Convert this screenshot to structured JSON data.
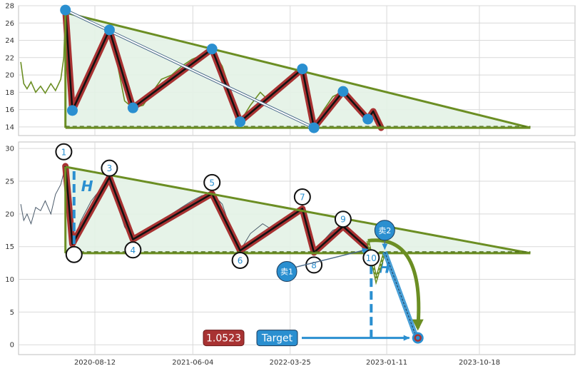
{
  "chart_data": [
    {
      "type": "line",
      "panel": "top",
      "ylim": [
        13,
        28
      ],
      "y_ticks": [
        14,
        16,
        18,
        20,
        22,
        24,
        26,
        28
      ],
      "grid": true,
      "colors": {
        "price": "#6b8e23",
        "zigzag": "#a83232",
        "pivot": "#2a8fd0",
        "triangle": "#6b8e23",
        "fill": "#e3f2e6"
      },
      "price": [
        [
          "2020-01-01",
          21.5
        ],
        [
          "2020-01-10",
          19.0
        ],
        [
          "2020-01-20",
          18.4
        ],
        [
          "2020-02-01",
          19.2
        ],
        [
          "2020-02-15",
          18.0
        ],
        [
          "2020-03-01",
          18.7
        ],
        [
          "2020-03-15",
          17.9
        ],
        [
          "2020-04-01",
          19.0
        ],
        [
          "2020-04-15",
          18.2
        ],
        [
          "2020-05-01",
          19.5
        ],
        [
          "2020-05-10",
          22.0
        ],
        [
          "2020-05-15",
          27.5
        ],
        [
          "2020-05-25",
          21.0
        ],
        [
          "2020-06-05",
          16.0
        ],
        [
          "2020-07-01",
          17.8
        ],
        [
          "2020-08-01",
          20.5
        ],
        [
          "2020-09-01",
          22.6
        ],
        [
          "2020-09-25",
          25.2
        ],
        [
          "2020-10-15",
          22.0
        ],
        [
          "2020-11-10",
          17.0
        ],
        [
          "2020-12-05",
          16.2
        ],
        [
          "2021-01-05",
          16.5
        ],
        [
          "2021-02-01",
          18.0
        ],
        [
          "2021-03-01",
          19.5
        ],
        [
          "2021-04-01",
          20.0
        ],
        [
          "2021-05-01",
          21.0
        ],
        [
          "2021-06-01",
          21.8
        ],
        [
          "2021-07-01",
          22.3
        ],
        [
          "2021-08-01",
          23.0
        ],
        [
          "2021-09-01",
          21.0
        ],
        [
          "2021-10-01",
          17.5
        ],
        [
          "2021-10-25",
          14.6
        ],
        [
          "2021-11-25",
          16.5
        ],
        [
          "2021-12-25",
          18.0
        ],
        [
          "2022-01-20",
          17.0
        ],
        [
          "2022-03-01",
          18.5
        ],
        [
          "2022-04-01",
          19.5
        ],
        [
          "2022-05-01",
          20.7
        ],
        [
          "2022-05-15",
          17.0
        ],
        [
          "2022-06-05",
          14.2
        ],
        [
          "2022-07-05",
          16.0
        ],
        [
          "2022-08-01",
          17.5
        ],
        [
          "2022-09-01",
          18.1
        ],
        [
          "2022-10-10",
          16.5
        ],
        [
          "2022-11-15",
          14.9
        ]
      ],
      "zigzag": [
        [
          "2020-05-15",
          27.5
        ],
        [
          "2020-06-05",
          15.9
        ],
        [
          "2020-09-25",
          25.2
        ],
        [
          "2020-12-05",
          16.2
        ],
        [
          "2021-08-01",
          23.0
        ],
        [
          "2021-10-25",
          14.6
        ],
        [
          "2022-05-01",
          20.7
        ],
        [
          "2022-06-05",
          13.9
        ],
        [
          "2022-09-01",
          18.1
        ],
        [
          "2022-11-15",
          14.9
        ],
        [
          "2022-12-01",
          15.8
        ],
        [
          "2022-12-25",
          13.9
        ]
      ],
      "pivots": [
        [
          "2020-05-15",
          27.5
        ],
        [
          "2020-06-05",
          15.9
        ],
        [
          "2020-09-25",
          25.2
        ],
        [
          "2020-12-05",
          16.2
        ],
        [
          "2021-08-01",
          23.0
        ],
        [
          "2021-10-25",
          14.6
        ],
        [
          "2022-05-01",
          20.7
        ],
        [
          "2022-06-05",
          13.9
        ],
        [
          "2022-09-01",
          18.1
        ],
        [
          "2022-11-15",
          14.9
        ]
      ],
      "triangle": {
        "apex_start": [
          "2020-05-15",
          27.2
        ],
        "apex_end": [
          "2024-03-20",
          13.9
        ],
        "base": 13.9
      },
      "diagonal_arrow": [
        [
          "2020-05-15",
          27.5
        ],
        [
          "2022-06-05",
          13.9
        ]
      ]
    },
    {
      "type": "line",
      "panel": "bottom",
      "ylim": [
        -1.5,
        31
      ],
      "y_ticks": [
        0,
        5,
        10,
        15,
        20,
        25,
        30
      ],
      "x_ticks": [
        "2020-08-12",
        "2021-06-04",
        "2022-03-25",
        "2023-01-11",
        "2023-10-18"
      ],
      "grid": true,
      "colors": {
        "price": "#4a5a6a",
        "zigzag": "#a83232",
        "triangle": "#6b8e23",
        "fill": "#e3f2e6",
        "dash": "#2a8fd0",
        "projection": "#6b8e23",
        "sell": "#2a8fd0",
        "badge": "#a83232"
      },
      "price": [
        [
          "2020-01-01",
          21.5
        ],
        [
          "2020-01-10",
          19.0
        ],
        [
          "2020-01-20",
          20.0
        ],
        [
          "2020-02-01",
          18.5
        ],
        [
          "2020-02-15",
          21.0
        ],
        [
          "2020-03-01",
          20.5
        ],
        [
          "2020-03-15",
          22.0
        ],
        [
          "2020-04-01",
          20.0
        ],
        [
          "2020-04-15",
          23.0
        ],
        [
          "2020-05-01",
          24.5
        ],
        [
          "2020-05-15",
          27.3
        ],
        [
          "2020-05-25",
          22.0
        ],
        [
          "2020-06-05",
          15.4
        ],
        [
          "2020-07-01",
          19.0
        ],
        [
          "2020-08-01",
          22.0
        ],
        [
          "2020-09-01",
          24.0
        ],
        [
          "2020-09-25",
          25.6
        ],
        [
          "2020-10-15",
          22.0
        ],
        [
          "2020-11-10",
          18.0
        ],
        [
          "2020-12-05",
          16.1
        ],
        [
          "2021-01-05",
          17.5
        ],
        [
          "2021-03-01",
          19.0
        ],
        [
          "2021-05-01",
          21.0
        ],
        [
          "2021-06-01",
          22.0
        ],
        [
          "2021-07-01",
          22.8
        ],
        [
          "2021-08-01",
          23.1
        ],
        [
          "2021-09-01",
          21.5
        ],
        [
          "2021-10-01",
          17.0
        ],
        [
          "2021-10-25",
          14.4
        ],
        [
          "2021-11-25",
          17.0
        ],
        [
          "2022-01-01",
          18.5
        ],
        [
          "2022-02-01",
          17.5
        ],
        [
          "2022-03-01",
          19.0
        ],
        [
          "2022-04-01",
          19.8
        ],
        [
          "2022-05-01",
          20.8
        ],
        [
          "2022-05-15",
          17.0
        ],
        [
          "2022-06-05",
          14.1
        ],
        [
          "2022-07-05",
          16.0
        ],
        [
          "2022-08-01",
          17.5
        ],
        [
          "2022-09-01",
          18.1
        ],
        [
          "2022-10-10",
          16.0
        ],
        [
          "2022-11-15",
          14.7
        ]
      ],
      "zigzag": [
        [
          "2020-05-15",
          27.3
        ],
        [
          "2020-06-05",
          15.4
        ],
        [
          "2020-09-25",
          25.6
        ],
        [
          "2020-12-05",
          16.1
        ],
        [
          "2021-08-01",
          23.1
        ],
        [
          "2021-10-25",
          14.4
        ],
        [
          "2022-05-01",
          20.8
        ],
        [
          "2022-06-05",
          14.1
        ],
        [
          "2022-09-01",
          18.1
        ],
        [
          "2022-11-15",
          14.7
        ]
      ],
      "wave_labels": [
        {
          "label": "1",
          "x": "2020-05-10",
          "y": 29.5
        },
        {
          "label": "",
          "x": "2020-06-10",
          "y": 13.8
        },
        {
          "label": "3",
          "x": "2020-09-25",
          "y": 27.0
        },
        {
          "label": "4",
          "x": "2020-12-05",
          "y": 14.5
        },
        {
          "label": "5",
          "x": "2021-08-01",
          "y": 24.8
        },
        {
          "label": "6",
          "x": "2021-10-25",
          "y": 12.9
        },
        {
          "label": "7",
          "x": "2022-05-01",
          "y": 22.6
        },
        {
          "label": "8",
          "x": "2022-06-05",
          "y": 12.2
        },
        {
          "label": "9",
          "x": "2022-09-01",
          "y": 19.2
        },
        {
          "label": "10",
          "x": "2022-11-25",
          "y": 13.3
        }
      ],
      "triangle": {
        "apex_start": [
          "2020-05-15",
          27.2
        ],
        "apex_end": [
          "2024-03-20",
          14.0
        ],
        "base": 14.0
      },
      "height_markers": [
        {
          "label": "H",
          "x": "2020-06-10",
          "y_from": 15.4,
          "y_to": 26.8,
          "label_y": 23.5
        },
        {
          "label": "H",
          "x": "2022-11-25",
          "y_from": 1.0,
          "y_to": 12.6,
          "label_y": 11.0
        }
      ],
      "projection": [
        [
          "2022-11-15",
          15.9
        ],
        [
          "2022-12-10",
          10.0
        ],
        [
          "2023-01-05",
          14.2
        ]
      ],
      "sell_points": [
        {
          "label": "卖1",
          "x": "2022-03-15",
          "y": 11.2
        },
        {
          "label": "卖2",
          "x": "2023-01-05",
          "y": 17.5
        }
      ],
      "target": {
        "label": "Target",
        "value": "1.0523",
        "x": "2023-04-15",
        "y": 1.05
      }
    }
  ]
}
